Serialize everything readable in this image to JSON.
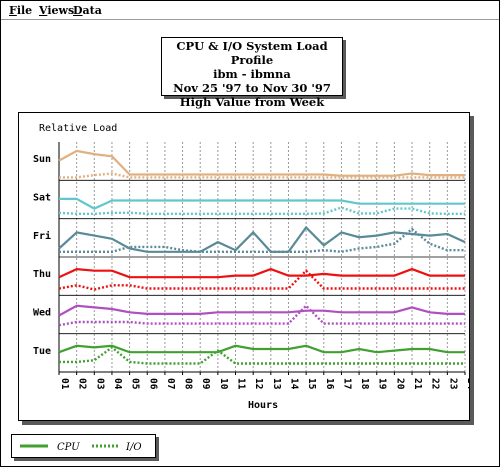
{
  "menu": {
    "items": [
      {
        "key": "F",
        "rest": "ile"
      },
      {
        "key": "V",
        "rest": "iews"
      },
      {
        "key": "D",
        "rest": "ata"
      }
    ]
  },
  "title_box": {
    "lines": [
      "CPU & I/O System Load Profile",
      "ibm - ibmna",
      "Nov 25 '97 to Nov 30 '97",
      "High Value from Week"
    ]
  },
  "legend": {
    "cpu_label": "CPU",
    "io_label": "I/O"
  },
  "colors": {
    "Sun": "#e0b080",
    "Sat": "#60c8cc",
    "Fri": "#5a8a98",
    "Thu": "#ee1010",
    "Wed": "#b050c0",
    "Tue": "#40a030",
    "legend": "#40a030"
  },
  "chart_data": {
    "type": "line",
    "title": "CPU & I/O System Load Profile",
    "ylabel": "Relative Load",
    "xlabel": "Hours",
    "x": [
      "01",
      "02",
      "03",
      "04",
      "05",
      "06",
      "07",
      "08",
      "09",
      "10",
      "11",
      "12",
      "13",
      "14",
      "15",
      "16",
      "17",
      "18",
      "19",
      "20",
      "21",
      "22",
      "23",
      "24"
    ],
    "row_labels": [
      "Sun",
      "Sat",
      "Fri",
      "Thu",
      "Wed",
      "Tue"
    ],
    "ylim": [
      0,
      10
    ],
    "grid": true,
    "legend_position": "bottom-left",
    "rows": [
      {
        "name": "Sun",
        "series": [
          {
            "name": "CPU",
            "values": [
              5.5,
              8.5,
              7.5,
              6.8,
              1.2,
              1.2,
              1.2,
              1.2,
              1.2,
              1.2,
              1.2,
              1.2,
              1.2,
              1.2,
              1.2,
              1.2,
              0.8,
              0.8,
              0.8,
              0.8,
              1.5,
              1.0,
              1.0,
              1.0
            ]
          },
          {
            "name": "I/O",
            "values": [
              0.3,
              0.3,
              1.0,
              1.5,
              0.3,
              0.3,
              0.3,
              0.3,
              0.3,
              0.3,
              0.3,
              0.3,
              0.3,
              0.3,
              0.3,
              0.3,
              0.3,
              0.3,
              0.3,
              0.3,
              0.3,
              0.3,
              0.3,
              0.3
            ]
          }
        ]
      },
      {
        "name": "Sat",
        "series": [
          {
            "name": "CPU",
            "values": [
              5.5,
              5.5,
              2.5,
              5.0,
              5.0,
              5.0,
              5.0,
              5.0,
              5.0,
              5.0,
              5.0,
              5.0,
              5.0,
              5.0,
              5.0,
              5.0,
              5.0,
              4.0,
              4.0,
              4.0,
              4.0,
              4.0,
              4.0,
              4.0
            ]
          },
          {
            "name": "I/O",
            "values": [
              1.2,
              0.9,
              0.9,
              1.2,
              1.2,
              0.9,
              0.9,
              0.9,
              0.9,
              0.9,
              0.9,
              0.9,
              0.9,
              0.9,
              0.9,
              1.0,
              2.8,
              1.0,
              1.0,
              2.5,
              2.5,
              1.0,
              0.9,
              0.9
            ]
          }
        ]
      },
      {
        "name": "Fri",
        "series": [
          {
            "name": "CPU",
            "values": [
              2.0,
              7.0,
              6.0,
              5.0,
              2.0,
              1.0,
              1.0,
              1.0,
              1.0,
              4.0,
              1.5,
              7.0,
              1.0,
              1.0,
              8.5,
              3.0,
              7.0,
              5.5,
              6.0,
              7.0,
              6.5,
              6.0,
              6.5,
              4.0
            ]
          },
          {
            "name": "I/O",
            "values": [
              1.0,
              1.0,
              1.0,
              1.0,
              2.5,
              2.5,
              2.5,
              1.5,
              1.0,
              1.0,
              1.0,
              1.0,
              1.0,
              1.0,
              1.0,
              1.5,
              1.0,
              2.0,
              2.5,
              3.5,
              8.0,
              3.5,
              1.5,
              1.5
            ]
          }
        ]
      },
      {
        "name": "Thu",
        "series": [
          {
            "name": "CPU",
            "values": [
              5.0,
              7.5,
              7.0,
              7.0,
              5.0,
              5.0,
              5.0,
              5.0,
              5.0,
              5.0,
              5.5,
              5.5,
              7.5,
              5.5,
              5.5,
              6.0,
              5.5,
              5.5,
              5.5,
              5.5,
              7.5,
              5.5,
              5.5,
              5.5
            ]
          },
          {
            "name": "I/O",
            "values": [
              1.5,
              2.5,
              1.2,
              2.5,
              2.5,
              1.5,
              1.5,
              1.5,
              1.5,
              1.5,
              1.5,
              1.5,
              1.5,
              1.5,
              7.0,
              1.5,
              1.5,
              1.5,
              1.5,
              1.5,
              1.5,
              1.5,
              1.5,
              1.5
            ]
          }
        ]
      },
      {
        "name": "Wed",
        "series": [
          {
            "name": "CPU",
            "values": [
              5.0,
              8.0,
              7.5,
              7.0,
              6.0,
              5.5,
              5.5,
              5.5,
              5.5,
              6.0,
              6.0,
              6.0,
              6.0,
              6.0,
              6.5,
              6.5,
              6.0,
              6.0,
              6.0,
              6.0,
              7.5,
              6.0,
              5.5,
              5.5
            ]
          },
          {
            "name": "I/O",
            "values": [
              2.0,
              3.0,
              3.0,
              3.0,
              3.0,
              2.5,
              2.5,
              2.5,
              2.5,
              2.5,
              2.5,
              2.5,
              2.5,
              2.5,
              8.0,
              2.5,
              2.5,
              2.5,
              2.5,
              2.5,
              2.5,
              2.5,
              2.5,
              2.5
            ]
          }
        ]
      },
      {
        "name": "Tue",
        "series": [
          {
            "name": "CPU",
            "values": [
              5.5,
              7.5,
              7.0,
              7.5,
              5.5,
              5.5,
              5.5,
              5.5,
              5.5,
              5.5,
              7.5,
              6.5,
              6.5,
              6.5,
              7.5,
              5.5,
              5.5,
              6.5,
              5.5,
              6.0,
              6.5,
              6.5,
              5.5,
              5.5
            ]
          },
          {
            "name": "I/O",
            "values": [
              2.5,
              2.5,
              3.0,
              7.0,
              2.5,
              2.0,
              2.0,
              2.0,
              2.0,
              6.0,
              2.0,
              2.0,
              2.0,
              2.0,
              2.0,
              2.0,
              2.0,
              2.0,
              2.0,
              2.0,
              2.0,
              2.0,
              2.0,
              2.0
            ]
          }
        ]
      }
    ]
  }
}
